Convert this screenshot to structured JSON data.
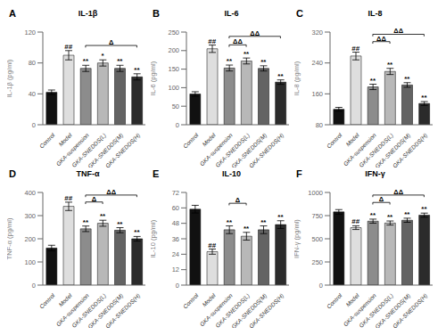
{
  "chart_data": [
    {
      "type": "bar",
      "panel": "A",
      "title": "IL-1β",
      "ylabel": "IL-1β (pg/ml)",
      "categories": [
        "Control",
        "Model",
        "GKA-suspension",
        "GKA-SNEDDS(L)",
        "GKA-SNEDDS(M)",
        "GKA-SNEDDS(H)"
      ],
      "values": [
        42,
        90,
        73,
        80,
        73,
        62
      ],
      "errors": [
        3,
        6,
        4,
        4,
        4,
        4
      ],
      "colors": [
        "#111111",
        "#dedede",
        "#8c8c8c",
        "#b8b8b8",
        "#636363",
        "#2b2b2b"
      ],
      "ylim": [
        0,
        120
      ],
      "yticks": [
        0,
        40,
        80,
        120
      ],
      "grid": false,
      "significance": [
        null,
        "##",
        "**",
        "*",
        "**",
        "**"
      ],
      "brackets": [
        {
          "from": "GKA-suspension",
          "to": "GKA-SNEDDS(H)",
          "y": 100,
          "label": "Δ"
        }
      ]
    },
    {
      "type": "bar",
      "panel": "B",
      "title": "IL-6",
      "ylabel": "IL-6 (pg/ml)",
      "categories": [
        "Control",
        "Model",
        "GKA-suspension",
        "GKA-SNEDDS(L)",
        "GKA-SNEDDS(M)",
        "GKA-SNEDDS(H)"
      ],
      "values": [
        83,
        205,
        153,
        172,
        152,
        115
      ],
      "errors": [
        6,
        10,
        8,
        8,
        7,
        6
      ],
      "colors": [
        "#111111",
        "#dedede",
        "#8c8c8c",
        "#b8b8b8",
        "#636363",
        "#2b2b2b"
      ],
      "ylim": [
        0,
        250
      ],
      "yticks": [
        0,
        50,
        100,
        150,
        200,
        250
      ],
      "grid": false,
      "significance": [
        null,
        "##",
        "**",
        "**",
        "**",
        "**"
      ],
      "brackets": [
        {
          "from": "GKA-suspension",
          "to": "GKA-SNEDDS(L)",
          "y": 210,
          "label": "ΔΔ"
        },
        {
          "from": "GKA-suspension",
          "to": "GKA-SNEDDS(H)",
          "y": 233,
          "label": "ΔΔ"
        }
      ]
    },
    {
      "type": "bar",
      "panel": "C",
      "title": "IL-8",
      "ylabel": "IL-8 (pg/ml)",
      "categories": [
        "Control",
        "Model",
        "GKA-suspension",
        "GKA-SNEDDS(L)",
        "GKA-SNEDDS(M)",
        "GKA-SNEDDS(H)"
      ],
      "values": [
        120,
        258,
        178,
        218,
        183,
        135
      ],
      "errors": [
        5,
        10,
        7,
        8,
        6,
        5
      ],
      "colors": [
        "#111111",
        "#dedede",
        "#8c8c8c",
        "#b8b8b8",
        "#636363",
        "#2b2b2b"
      ],
      "ylim": [
        80,
        320
      ],
      "yticks": [
        80,
        160,
        240,
        320
      ],
      "grid": false,
      "significance": [
        null,
        "##",
        "**",
        "**",
        "**",
        "**"
      ],
      "brackets": [
        {
          "from": "GKA-suspension",
          "to": "GKA-SNEDDS(L)",
          "y": 290,
          "label": "ΔΔ"
        },
        {
          "from": "GKA-suspension",
          "to": "GKA-SNEDDS(H)",
          "y": 309,
          "label": "ΔΔ"
        }
      ]
    },
    {
      "type": "bar",
      "panel": "D",
      "title": "TNF-α",
      "ylabel": "TNF-α (pg/ml)",
      "categories": [
        "Control",
        "Model",
        "GKA-suspension",
        "GKA-SNEDDS(L)",
        "GKA-SNEDDS(M)",
        "GKA-SNEDDS(H)"
      ],
      "values": [
        160,
        340,
        243,
        267,
        237,
        200
      ],
      "errors": [
        12,
        18,
        12,
        13,
        11,
        10
      ],
      "colors": [
        "#111111",
        "#dedede",
        "#8c8c8c",
        "#b8b8b8",
        "#636363",
        "#2b2b2b"
      ],
      "ylim": [
        0,
        400
      ],
      "yticks": [
        0,
        100,
        200,
        300,
        400
      ],
      "grid": false,
      "significance": [
        null,
        "##",
        "**",
        "**",
        "**",
        "**"
      ],
      "brackets": [
        {
          "from": "GKA-suspension",
          "to": "GKA-SNEDDS(L)",
          "y": 350,
          "label": "Δ"
        },
        {
          "from": "GKA-suspension",
          "to": "GKA-SNEDDS(H)",
          "y": 380,
          "label": "ΔΔ"
        }
      ]
    },
    {
      "type": "bar",
      "panel": "E",
      "title": "IL-10",
      "ylabel": "IL-10 (pg/ml)",
      "categories": [
        "Control",
        "Model",
        "GKA-suspension",
        "GKA-SNEDDS(L)",
        "GKA-SNEDDS(M)",
        "GKA-SNEDDS(H)"
      ],
      "values": [
        59,
        26,
        43,
        38,
        43,
        47
      ],
      "errors": [
        3,
        2,
        3,
        3,
        3,
        3
      ],
      "colors": [
        "#111111",
        "#dedede",
        "#8c8c8c",
        "#b8b8b8",
        "#636363",
        "#2b2b2b"
      ],
      "ylim": [
        0,
        72
      ],
      "yticks": [
        0,
        12,
        24,
        36,
        48,
        60,
        72
      ],
      "grid": false,
      "significance": [
        null,
        "##",
        "**",
        "**",
        "**",
        "**"
      ],
      "brackets": [
        {
          "from": "GKA-suspension",
          "to": "GKA-SNEDDS(L)",
          "y": 62,
          "label": "Δ"
        }
      ]
    },
    {
      "type": "bar",
      "panel": "F",
      "title": "IFN-γ",
      "ylabel": "IFN-γ (pg/ml)",
      "categories": [
        "Control",
        "Model",
        "GKA-suspension",
        "GKA-SNEDDS(L)",
        "GKA-SNEDDS(M)",
        "GKA-SNEDDS(H)"
      ],
      "values": [
        790,
        620,
        690,
        670,
        700,
        755
      ],
      "errors": [
        25,
        20,
        22,
        22,
        22,
        22
      ],
      "colors": [
        "#111111",
        "#dedede",
        "#8c8c8c",
        "#b8b8b8",
        "#636363",
        "#2b2b2b"
      ],
      "ylim": [
        0,
        1000
      ],
      "yticks": [
        0,
        250,
        500,
        750,
        1000
      ],
      "grid": false,
      "significance": [
        null,
        "##",
        "**",
        "**",
        "**",
        "**"
      ],
      "brackets": [
        {
          "from": "GKA-suspension",
          "to": "GKA-SNEDDS(L)",
          "y": 870,
          "label": "Δ"
        },
        {
          "from": "GKA-suspension",
          "to": "GKA-SNEDDS(H)",
          "y": 950,
          "label": "ΔΔ"
        }
      ]
    }
  ]
}
